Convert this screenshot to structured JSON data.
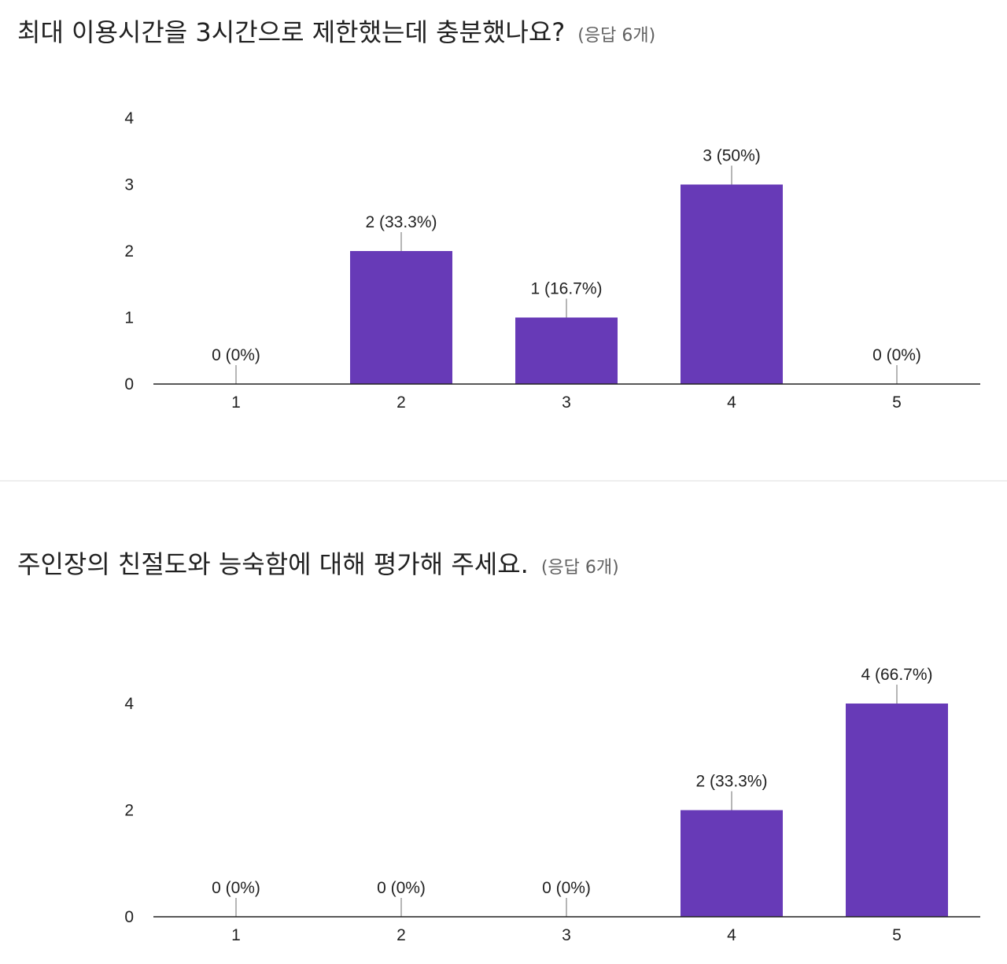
{
  "questions": [
    {
      "title": "최대 이용시간을 3시간으로 제한했는데 충분했나요?",
      "count_label": "(응답 6개)"
    },
    {
      "title": "주인장의 친절도와 능숙함에 대해 평가해 주세요.",
      "count_label": "(응답 6개)"
    }
  ],
  "chart_data": [
    {
      "type": "bar",
      "categories": [
        "1",
        "2",
        "3",
        "4",
        "5"
      ],
      "values": [
        0,
        2,
        1,
        3,
        0
      ],
      "data_labels": [
        "0 (0%)",
        "2 (33.3%)",
        "1 (16.7%)",
        "3 (50%)",
        "0 (0%)"
      ],
      "yticks": [
        0,
        1,
        2,
        3,
        4
      ],
      "ylim": [
        0,
        4
      ],
      "bar_color": "#673ab7",
      "grid": false,
      "legend": "none"
    },
    {
      "type": "bar",
      "categories": [
        "1",
        "2",
        "3",
        "4",
        "5"
      ],
      "values": [
        0,
        0,
        0,
        2,
        4
      ],
      "data_labels": [
        "0 (0%)",
        "0 (0%)",
        "0 (0%)",
        "2 (33.3%)",
        "4 (66.7%)"
      ],
      "yticks": [
        0,
        2,
        4
      ],
      "ylim": [
        0,
        4
      ],
      "bar_color": "#673ab7",
      "grid": false,
      "legend": "none"
    }
  ]
}
